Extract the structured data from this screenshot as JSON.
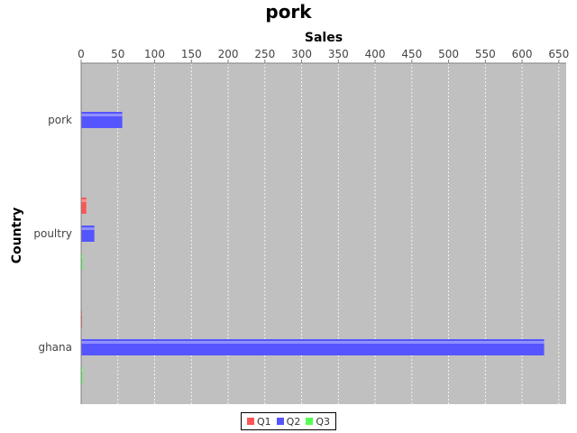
{
  "chart_data": {
    "type": "bar",
    "orientation": "horizontal",
    "title": "pork",
    "xlabel": "Sales",
    "ylabel": "Country",
    "xaxis_position": "top",
    "xlim": [
      0,
      660
    ],
    "xticks": [
      0,
      50,
      100,
      150,
      200,
      250,
      300,
      350,
      400,
      450,
      500,
      550,
      600,
      650
    ],
    "grid": true,
    "legend_position": "bottom",
    "categories": [
      "pork",
      "poultry",
      "ghana"
    ],
    "series": [
      {
        "name": "Q1",
        "color": "#ff5555",
        "values": [
          0,
          7,
          1
        ]
      },
      {
        "name": "Q2",
        "color": "#5555ff",
        "values": [
          56,
          18,
          630
        ]
      },
      {
        "name": "Q3",
        "color": "#55ff55",
        "values": [
          0,
          2,
          2
        ]
      }
    ]
  }
}
